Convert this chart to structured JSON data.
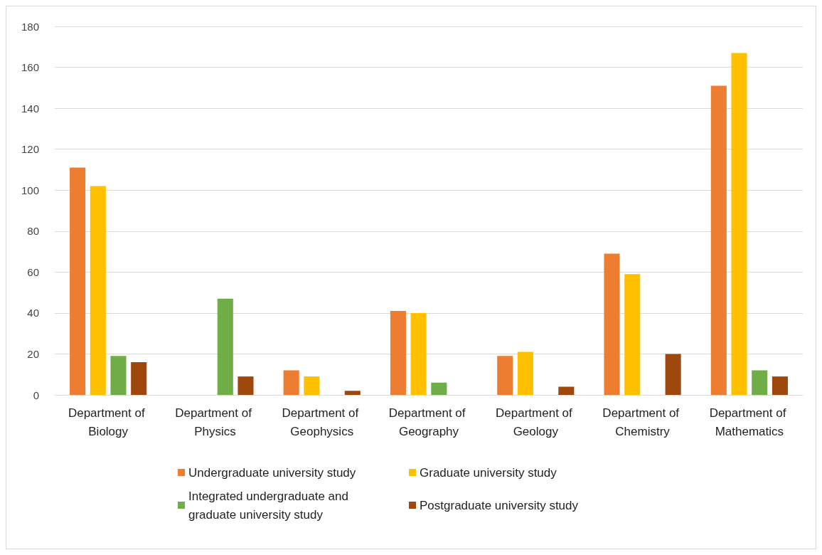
{
  "chart_data": {
    "type": "bar",
    "categories": [
      "Department of Biology",
      "Department of Physics",
      "Department of Geophysics",
      "Department of Geography",
      "Department of Geology",
      "Department of Chemistry",
      "Department of Mathematics"
    ],
    "series": [
      {
        "name": "Undergraduate university study",
        "color": "#ed7d31",
        "values": [
          111,
          0,
          12,
          41,
          19,
          69,
          151
        ]
      },
      {
        "name": "Graduate university study",
        "color": "#ffc000",
        "values": [
          102,
          0,
          9,
          40,
          21,
          59,
          167
        ]
      },
      {
        "name": "Integrated undergraduate and graduate university study",
        "color": "#70ad47",
        "values": [
          19,
          47,
          0,
          6,
          0,
          0,
          12
        ]
      },
      {
        "name": "Postgraduate university study",
        "color": "#9e480e",
        "values": [
          16,
          9,
          2,
          0,
          4,
          20,
          9
        ]
      }
    ],
    "ylim": [
      0,
      180
    ],
    "yticks": [
      0,
      20,
      40,
      60,
      80,
      100,
      120,
      140,
      160,
      180
    ],
    "grid": "y",
    "legend": "bottom"
  }
}
